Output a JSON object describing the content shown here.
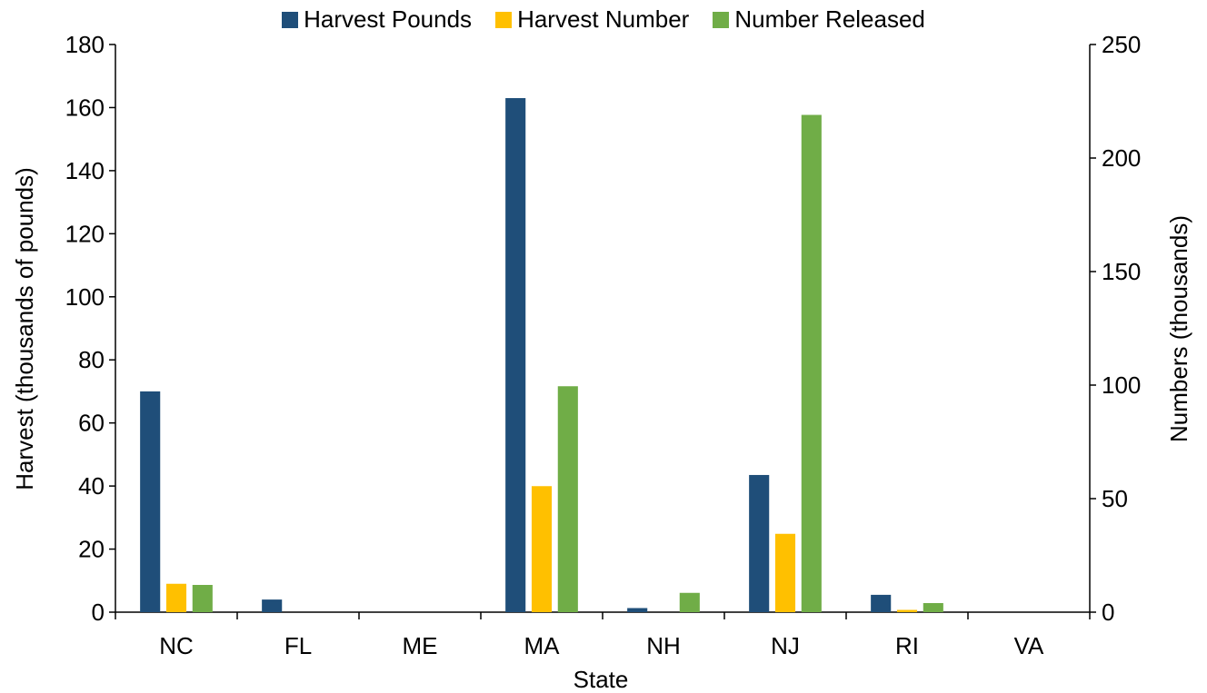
{
  "chart_data": {
    "type": "bar",
    "title": "",
    "xlabel": "State",
    "ylabel_left": "Harvest (thousands of pounds)",
    "ylabel_right": "Numbers (thousands)",
    "categories": [
      "NC",
      "FL",
      "ME",
      "MA",
      "NH",
      "NJ",
      "RI",
      "VA"
    ],
    "ylim_left": [
      0,
      180
    ],
    "ylim_right": [
      0,
      250
    ],
    "yticks_left": [
      0,
      20,
      40,
      60,
      80,
      100,
      120,
      140,
      160,
      180
    ],
    "yticks_right": [
      0,
      50,
      100,
      150,
      200,
      250
    ],
    "legend_position": "top",
    "grid": false,
    "series": [
      {
        "name": "Harvest Pounds",
        "axis": "left",
        "color": "#1f4e79",
        "values": [
          70,
          4,
          0,
          163,
          1.3,
          43.5,
          5.5,
          0
        ]
      },
      {
        "name": "Harvest Number",
        "axis": "right",
        "color": "#ffc000",
        "values": [
          12.5,
          0,
          0,
          55.5,
          0,
          34.5,
          1,
          0
        ]
      },
      {
        "name": "Number Released",
        "axis": "right",
        "color": "#70ad47",
        "values": [
          12,
          0,
          0,
          99.5,
          8.5,
          219,
          4,
          0
        ]
      }
    ]
  }
}
